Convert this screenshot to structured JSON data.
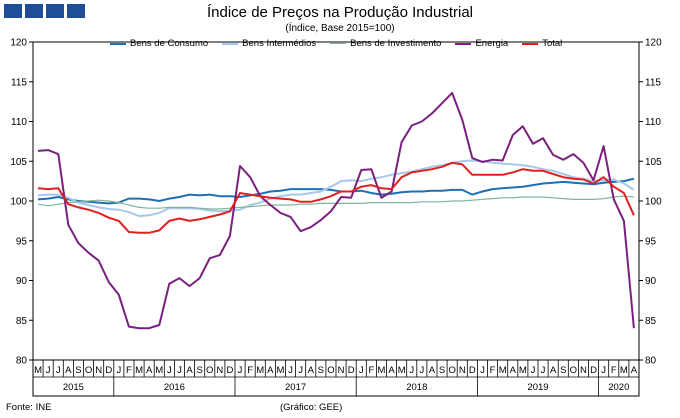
{
  "header": {
    "title": "Índice de Preços na Produção Industrial",
    "subtitle": "(Índice, Base 2015=100)"
  },
  "footer": {
    "source": "Fonte: INE",
    "credit": "(Gráfico: GEE)"
  },
  "chart_data": {
    "type": "line",
    "title": "Índice de Preços na Produção Industrial",
    "subtitle": "(Índice, Base 2015=100)",
    "xlabel": "",
    "ylabel": "",
    "ylim": [
      80,
      120
    ],
    "yticks": [
      80,
      85,
      90,
      95,
      100,
      105,
      110,
      115,
      120
    ],
    "grid": false,
    "legend_position": "top",
    "month_labels": [
      "M",
      "J",
      "J",
      "A",
      "S",
      "O",
      "N",
      "D",
      "J",
      "F",
      "M",
      "A",
      "M",
      "J",
      "J",
      "A",
      "S",
      "O",
      "N",
      "D",
      "J",
      "F",
      "M",
      "A",
      "M",
      "J",
      "J",
      "A",
      "S",
      "O",
      "N",
      "D",
      "J",
      "F",
      "M",
      "A",
      "M",
      "J",
      "J",
      "A",
      "S",
      "O",
      "N",
      "D",
      "J",
      "F",
      "M",
      "A",
      "M",
      "J",
      "J",
      "A",
      "S",
      "O",
      "N",
      "D",
      "J",
      "F",
      "M",
      "A"
    ],
    "year_labels": [
      {
        "label": "2015",
        "start": 0,
        "end": 7
      },
      {
        "label": "2016",
        "start": 8,
        "end": 19
      },
      {
        "label": "2017",
        "start": 20,
        "end": 31
      },
      {
        "label": "2018",
        "start": 32,
        "end": 43
      },
      {
        "label": "2019",
        "start": 44,
        "end": 55
      },
      {
        "label": "2020",
        "start": 56,
        "end": 59
      }
    ],
    "series": [
      {
        "name": "Bens de Consumo",
        "color": "#1f6fb5",
        "width": 2,
        "values": [
          100.2,
          100.3,
          100.5,
          100.2,
          100.0,
          99.9,
          99.8,
          99.7,
          99.8,
          100.3,
          100.3,
          100.2,
          100.0,
          100.3,
          100.5,
          100.8,
          100.7,
          100.8,
          100.6,
          100.6,
          100.5,
          100.7,
          100.9,
          101.2,
          101.3,
          101.5,
          101.5,
          101.5,
          101.5,
          101.4,
          101.2,
          101.2,
          101.3,
          101.0,
          100.8,
          100.9,
          101.1,
          101.2,
          101.2,
          101.3,
          101.3,
          101.4,
          101.4,
          100.8,
          101.2,
          101.5,
          101.6,
          101.7,
          101.8,
          102.0,
          102.2,
          102.3,
          102.4,
          102.3,
          102.2,
          102.1,
          102.3,
          102.4,
          102.5,
          102.8
        ]
      },
      {
        "name": "Bens Intermédios",
        "color": "#a8c8ea",
        "width": 2,
        "values": [
          100.7,
          100.8,
          100.8,
          100.4,
          99.8,
          99.5,
          99.2,
          99.0,
          98.9,
          98.6,
          98.1,
          98.2,
          98.5,
          99.1,
          99.1,
          99.1,
          99.0,
          98.8,
          98.7,
          98.8,
          98.9,
          99.5,
          99.8,
          100.3,
          100.6,
          100.8,
          100.8,
          101.0,
          101.2,
          101.8,
          102.5,
          102.6,
          102.5,
          102.8,
          103.0,
          103.3,
          103.5,
          103.7,
          104.0,
          104.3,
          104.5,
          104.8,
          105.0,
          105.1,
          105.0,
          104.8,
          104.7,
          104.6,
          104.5,
          104.3,
          104.0,
          103.8,
          103.4,
          103.0,
          102.8,
          102.5,
          102.6,
          102.7,
          102.2,
          101.4
        ]
      },
      {
        "name": "Bens de Investimento",
        "color": "#7fb69a",
        "width": 1.2,
        "values": [
          99.6,
          99.4,
          99.6,
          99.8,
          99.9,
          100.0,
          100.1,
          100.0,
          99.8,
          99.5,
          99.2,
          99.1,
          99.1,
          99.2,
          99.2,
          99.2,
          99.1,
          99.0,
          99.0,
          99.1,
          99.2,
          99.3,
          99.4,
          99.5,
          99.5,
          99.5,
          99.6,
          99.6,
          99.7,
          99.7,
          99.7,
          99.7,
          99.7,
          99.8,
          99.8,
          99.8,
          99.8,
          99.8,
          99.9,
          99.9,
          99.9,
          100.0,
          100.0,
          100.1,
          100.2,
          100.3,
          100.4,
          100.4,
          100.5,
          100.5,
          100.5,
          100.4,
          100.3,
          100.2,
          100.2,
          100.2,
          100.3,
          100.5,
          100.6,
          100.5
        ]
      },
      {
        "name": "Energia",
        "color": "#7b1f7f",
        "width": 2,
        "values": [
          106.3,
          106.4,
          105.9,
          97.0,
          94.7,
          93.5,
          92.5,
          89.8,
          88.2,
          84.2,
          84.0,
          84.0,
          84.4,
          89.6,
          90.3,
          89.3,
          90.3,
          92.8,
          93.2,
          95.6,
          104.4,
          103.0,
          100.6,
          99.5,
          98.5,
          98.0,
          96.2,
          96.7,
          97.6,
          98.7,
          100.5,
          100.4,
          103.9,
          104.0,
          100.4,
          101.2,
          107.4,
          109.5,
          110.0,
          111.0,
          112.3,
          113.6,
          110.2,
          105.4,
          104.9,
          105.2,
          105.1,
          108.3,
          109.4,
          107.2,
          107.9,
          105.8,
          105.2,
          105.9,
          104.8,
          102.6,
          106.9,
          100.2,
          97.5,
          84.0
        ]
      },
      {
        "name": "Total",
        "color": "#e02020",
        "width": 2,
        "values": [
          101.6,
          101.5,
          101.6,
          99.6,
          99.2,
          98.9,
          98.5,
          97.9,
          97.5,
          96.1,
          96.0,
          96.0,
          96.3,
          97.5,
          97.8,
          97.5,
          97.7,
          98.0,
          98.3,
          98.7,
          101.0,
          100.8,
          100.6,
          100.4,
          100.3,
          100.2,
          99.9,
          99.9,
          100.2,
          100.6,
          101.2,
          101.2,
          101.8,
          102.0,
          101.6,
          101.5,
          103.0,
          103.6,
          103.8,
          104.0,
          104.3,
          104.8,
          104.6,
          103.3,
          103.3,
          103.3,
          103.3,
          103.6,
          104.0,
          103.8,
          103.8,
          103.4,
          103.0,
          102.8,
          102.7,
          102.2,
          103.0,
          101.8,
          101.0,
          98.2
        ]
      }
    ]
  }
}
